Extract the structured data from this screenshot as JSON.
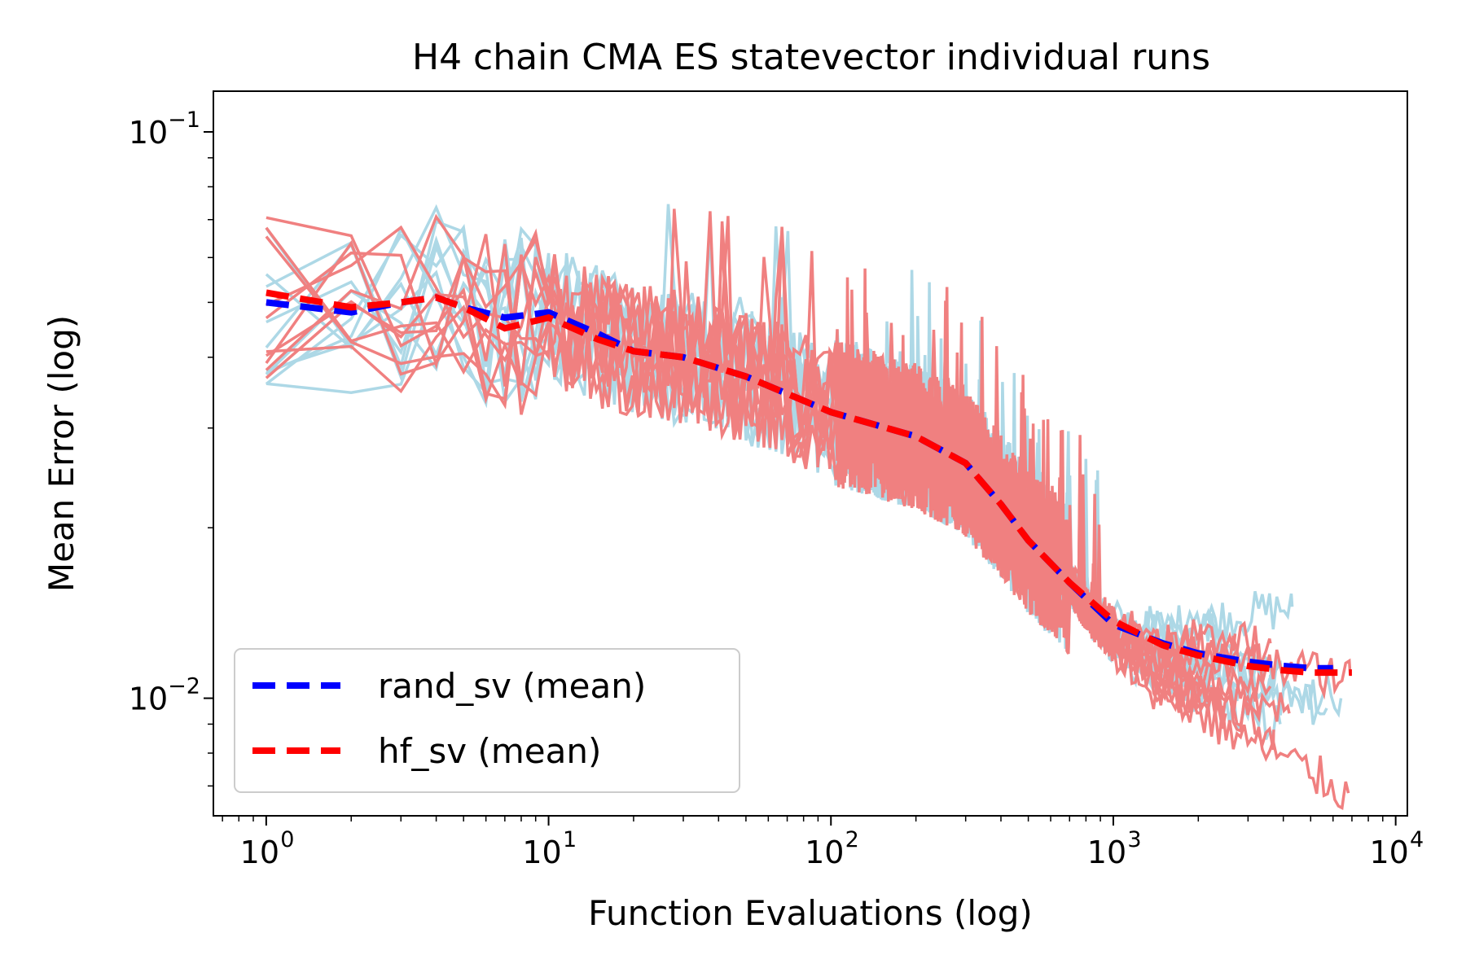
{
  "chart_data": {
    "type": "line",
    "title": "H4 chain CMA ES statevector individual runs",
    "xlabel": "Function Evaluations (log)",
    "ylabel": "Mean Error (log)",
    "xscale": "log",
    "yscale": "log",
    "xlim": [
      0.65,
      11000
    ],
    "ylim": [
      0.0062,
      0.118
    ],
    "x_ticks": [
      {
        "value": 1,
        "base": "10",
        "exp": "0"
      },
      {
        "value": 10,
        "base": "10",
        "exp": "1"
      },
      {
        "value": 100,
        "base": "10",
        "exp": "2"
      },
      {
        "value": 1000,
        "base": "10",
        "exp": "3"
      },
      {
        "value": 10000,
        "base": "10",
        "exp": "4"
      }
    ],
    "y_ticks": [
      {
        "value": 0.01,
        "base": "10",
        "exp": "−2"
      },
      {
        "value": 0.1,
        "base": "10",
        "exp": "−1"
      }
    ],
    "legend_position": "lower-left",
    "colors": {
      "rand_runs": "#add8e6",
      "hf_runs": "#f08080",
      "rand_mean": "#0000ff",
      "hf_mean": "#ff0000"
    },
    "series": [
      {
        "name": "rand_sv (mean)",
        "key": "rand_mean",
        "style": "dashed",
        "x": [
          1,
          2,
          3,
          4,
          5,
          7,
          10,
          15,
          20,
          30,
          50,
          100,
          200,
          300,
          400,
          500,
          700,
          1000,
          1500,
          2000,
          3000,
          4000,
          5000,
          6000
        ],
        "y": [
          0.05,
          0.048,
          0.05,
          0.051,
          0.049,
          0.047,
          0.048,
          0.044,
          0.041,
          0.04,
          0.037,
          0.032,
          0.029,
          0.026,
          0.022,
          0.019,
          0.016,
          0.0135,
          0.0125,
          0.012,
          0.0116,
          0.0114,
          0.0113,
          0.0113
        ]
      },
      {
        "name": "hf_sv (mean)",
        "key": "hf_mean",
        "style": "dashed",
        "x": [
          1,
          2,
          3,
          4,
          5,
          7,
          10,
          15,
          20,
          30,
          50,
          100,
          200,
          300,
          400,
          500,
          700,
          1000,
          1500,
          2000,
          3000,
          4000,
          5000,
          6000,
          7000
        ],
        "y": [
          0.052,
          0.049,
          0.05,
          0.051,
          0.049,
          0.045,
          0.047,
          0.043,
          0.041,
          0.04,
          0.037,
          0.032,
          0.029,
          0.026,
          0.022,
          0.019,
          0.016,
          0.0137,
          0.0124,
          0.0119,
          0.0114,
          0.0112,
          0.0111,
          0.0111,
          0.0111
        ]
      }
    ],
    "individual_runs": {
      "rand_sv_count": 10,
      "hf_sv_count": 10,
      "hf_final_values": [
        0.0115,
        0.0125,
        0.0105,
        0.0094,
        0.0088,
        0.0094,
        0.011,
        0.013,
        0.0068,
        0.0095
      ],
      "rand_final_values": [
        0.0145,
        0.0135,
        0.013,
        0.011,
        0.0096,
        0.009,
        0.0115,
        0.0112,
        0.01,
        0.012
      ]
    }
  }
}
